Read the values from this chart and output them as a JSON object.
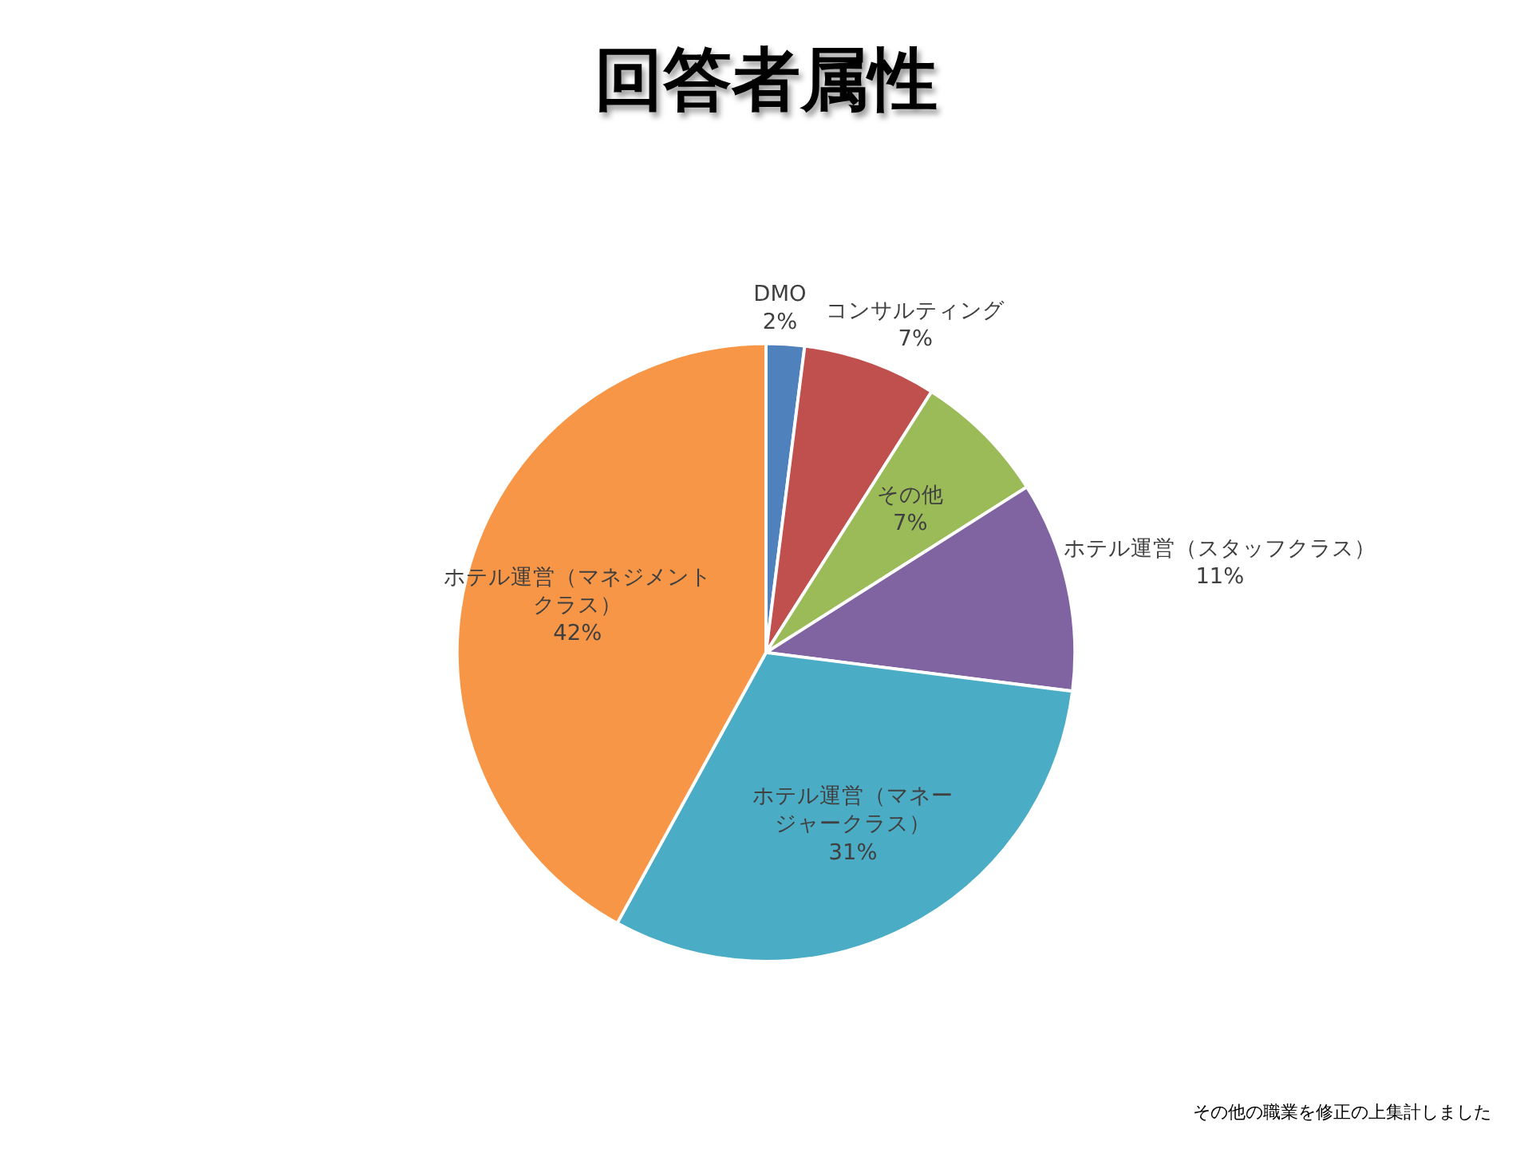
{
  "chart_data": {
    "type": "pie",
    "title": "回答者属性",
    "categories": [
      "DMO",
      "コンサルティング",
      "その他",
      "ホテル運営（スタッフクラス）",
      "ホテル運営（マネージャークラス）",
      "ホテル運営（マネジメントクラス）"
    ],
    "values": [
      2,
      7,
      7,
      11,
      31,
      42
    ],
    "value_labels": [
      "2%",
      "7%",
      "7%",
      "11%",
      "31%",
      "42%"
    ],
    "colors": [
      "#4f81bd",
      "#c0504d",
      "#9bbb59",
      "#8064a2",
      "#4bacc6",
      "#f79646"
    ],
    "annotations": [
      "その他の職業を修正の上集計しました"
    ]
  }
}
